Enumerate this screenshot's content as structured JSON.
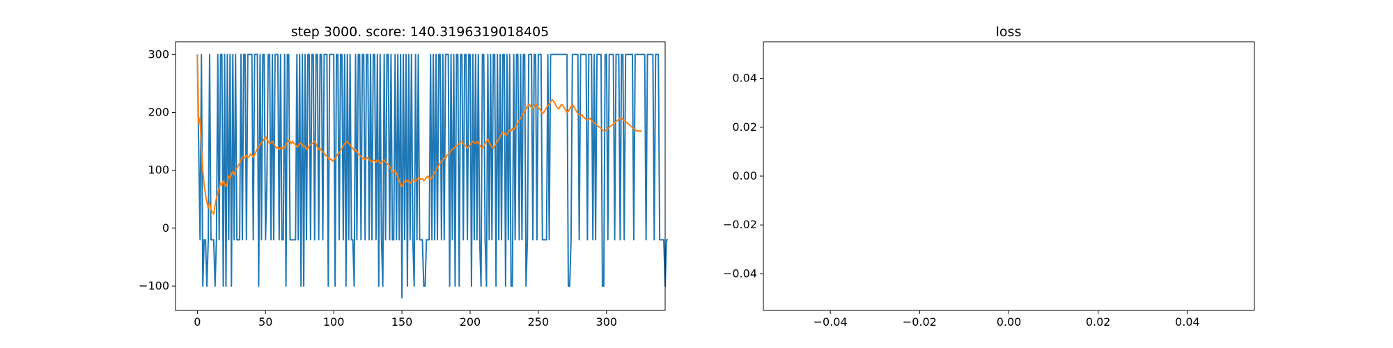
{
  "chart_data": [
    {
      "type": "line",
      "title": "step 3000. score: 140.3196319018405",
      "xlabel": "",
      "ylabel": "",
      "xlim": [
        -16,
        343
      ],
      "ylim": [
        -142,
        322
      ],
      "xticks": [
        0,
        50,
        100,
        150,
        200,
        250,
        300
      ],
      "yticks": [
        -100,
        0,
        100,
        200,
        300
      ],
      "grid": false,
      "colors": {
        "raw": "#1f77b4",
        "avg": "#ff7f0e"
      },
      "series": [
        {
          "values": [
            300,
            140,
            -20,
            300,
            -100,
            -20,
            -20,
            -100,
            -20,
            300,
            -20,
            -20,
            -20,
            -100,
            -20,
            300,
            -20,
            300,
            300,
            -100,
            300,
            -100,
            300,
            -20,
            300,
            -100,
            300,
            -20,
            300,
            -20,
            -20,
            -20,
            300,
            -20,
            300,
            300,
            -20,
            300,
            300,
            300,
            300,
            -20,
            300,
            300,
            300,
            -100,
            300,
            -20,
            300,
            300,
            -20,
            80,
            300,
            300,
            -20,
            300,
            -20,
            300,
            300,
            300,
            -20,
            300,
            -20,
            -20,
            300,
            -100,
            300,
            300,
            -20,
            -20,
            -20,
            -20,
            -20,
            300,
            -20,
            300,
            -100,
            300,
            -100,
            300,
            -20,
            300,
            300,
            -20,
            300,
            300,
            -20,
            300,
            300,
            -20,
            300,
            300,
            -20,
            300,
            300,
            300,
            -100,
            300,
            300,
            300,
            300,
            -100,
            300,
            300,
            -20,
            300,
            300,
            -20,
            300,
            -100,
            300,
            -20,
            300,
            -20,
            -20,
            -100,
            300,
            -20,
            300,
            300,
            -20,
            300,
            300,
            -20,
            300,
            300,
            -20,
            300,
            -20,
            300,
            300,
            -20,
            300,
            -100,
            300,
            -20,
            -100,
            300,
            -20,
            300,
            300,
            -20,
            300,
            -20,
            -20,
            300,
            -20,
            300,
            -20,
            300,
            -120,
            300,
            -20,
            300,
            -100,
            300,
            -20,
            300,
            -20,
            -100,
            300,
            -20,
            300,
            -20,
            -20,
            -20,
            -100,
            -100,
            -20,
            -20,
            -20,
            300,
            -20,
            300,
            -20,
            300,
            -20,
            300,
            300,
            -20,
            300,
            -20,
            300,
            300,
            300,
            -100,
            300,
            -20,
            300,
            -100,
            300,
            300,
            -100,
            300,
            300,
            -20,
            300,
            300,
            -20,
            300,
            300,
            -100,
            300,
            -20,
            300,
            -20,
            300,
            -20,
            -100,
            300,
            300,
            -20,
            -100,
            300,
            -20,
            300,
            -20,
            300,
            300,
            -100,
            300,
            -20,
            300,
            -20,
            300,
            300,
            -100,
            300,
            -20,
            300,
            -100,
            -100,
            300,
            -20,
            300,
            300,
            -20,
            300,
            -20,
            300,
            300,
            -100,
            -20,
            300,
            300,
            300,
            -20,
            300,
            300,
            -20,
            300,
            300,
            300,
            -20,
            -20,
            -20,
            -20,
            300,
            -20,
            300,
            300,
            300,
            300,
            300,
            300,
            300,
            300,
            300,
            300,
            300,
            300,
            300,
            -100,
            -100,
            -20,
            300,
            300,
            300,
            300,
            300,
            -20,
            300,
            300,
            300,
            300,
            300,
            -20,
            300,
            300,
            300,
            -20,
            300,
            -20,
            300,
            300,
            300,
            300,
            -100,
            -100,
            300,
            300,
            -20,
            300,
            300,
            300,
            300,
            -20,
            300,
            300,
            300,
            -20,
            300,
            300,
            -20,
            300,
            300,
            300,
            300,
            300,
            300,
            -20,
            300,
            300,
            300,
            300,
            300,
            300,
            300,
            300,
            -20,
            300,
            300,
            300,
            300,
            300,
            -20,
            300,
            300,
            300,
            -20,
            -20,
            -20,
            -20,
            -100,
            -20,
            -20
          ]
        },
        {
          "values": [
            300,
            180,
            190,
            140,
            100,
            75,
            58,
            45,
            35,
            45,
            32,
            28,
            24,
            40,
            52,
            60,
            68,
            78,
            74,
            82,
            76,
            72,
            80,
            90,
            86,
            94,
            98,
            92,
            100,
            104,
            108,
            112,
            118,
            122,
            124,
            120,
            126,
            122,
            124,
            128,
            126,
            122,
            128,
            132,
            138,
            140,
            144,
            148,
            150,
            154,
            158,
            154,
            150,
            146,
            148,
            150,
            146,
            142,
            138,
            140,
            136,
            138,
            140,
            136,
            140,
            144,
            148,
            152,
            150,
            146,
            150,
            146,
            144,
            140,
            142,
            146,
            148,
            144,
            140,
            142,
            136,
            138,
            142,
            144,
            146,
            148,
            150,
            146,
            140,
            136,
            138,
            134,
            132,
            130,
            126,
            124,
            122,
            118,
            120,
            116,
            118,
            120,
            124,
            128,
            130,
            134,
            138,
            142,
            146,
            148,
            150,
            146,
            144,
            140,
            138,
            134,
            136,
            132,
            128,
            126,
            124,
            120,
            122,
            118,
            120,
            122,
            118,
            116,
            114,
            118,
            116,
            114,
            118,
            116,
            112,
            114,
            116,
            118,
            114,
            112,
            110,
            106,
            102,
            98,
            96,
            100,
            94,
            88,
            82,
            76,
            72,
            78,
            80,
            84,
            80,
            82,
            78,
            80,
            84,
            82,
            80,
            84,
            88,
            86,
            84,
            86,
            82,
            84,
            88,
            90,
            86,
            84,
            88,
            92,
            96,
            100,
            104,
            108,
            112,
            116,
            118,
            122,
            120,
            126,
            128,
            130,
            134,
            136,
            138,
            140,
            142,
            144,
            146,
            148,
            150,
            146,
            144,
            142,
            138,
            140,
            144,
            148,
            150,
            148,
            146,
            150,
            148,
            144,
            140,
            138,
            142,
            146,
            150,
            154,
            148,
            144,
            140,
            138,
            142,
            146,
            150,
            154,
            158,
            162,
            166,
            164,
            160,
            162,
            166,
            170,
            168,
            172,
            170,
            174,
            178,
            182,
            186,
            190,
            194,
            198,
            202,
            206,
            210,
            214,
            212,
            208,
            206,
            210,
            214,
            212,
            208,
            206,
            202,
            198,
            200,
            204,
            208,
            212,
            214,
            218,
            222,
            220,
            216,
            212,
            208,
            206,
            210,
            214,
            212,
            208,
            204,
            200,
            202,
            206,
            210,
            214,
            210,
            206,
            202,
            198,
            196,
            194,
            196,
            192,
            190,
            188,
            186,
            188,
            190,
            186,
            184,
            182,
            180,
            178,
            176,
            174,
            172,
            170,
            168,
            168,
            170,
            172,
            174,
            176,
            178,
            180,
            182,
            184,
            186,
            188,
            190,
            190,
            188,
            186,
            184,
            182,
            180,
            178,
            176,
            174,
            172,
            170,
            168,
            168,
            168,
            168,
            168
          ]
        }
      ]
    },
    {
      "type": "line",
      "title": "loss",
      "xlabel": "",
      "ylabel": "",
      "xlim": [
        -0.055,
        0.055
      ],
      "ylim": [
        -0.055,
        0.055
      ],
      "xticks": [
        "−0.04",
        "−0.02",
        "0.00",
        "0.02",
        "0.04"
      ],
      "yticks": [
        "−0.04",
        "−0.02",
        "0.00",
        "0.02",
        "0.04"
      ],
      "grid": false,
      "series": []
    }
  ]
}
